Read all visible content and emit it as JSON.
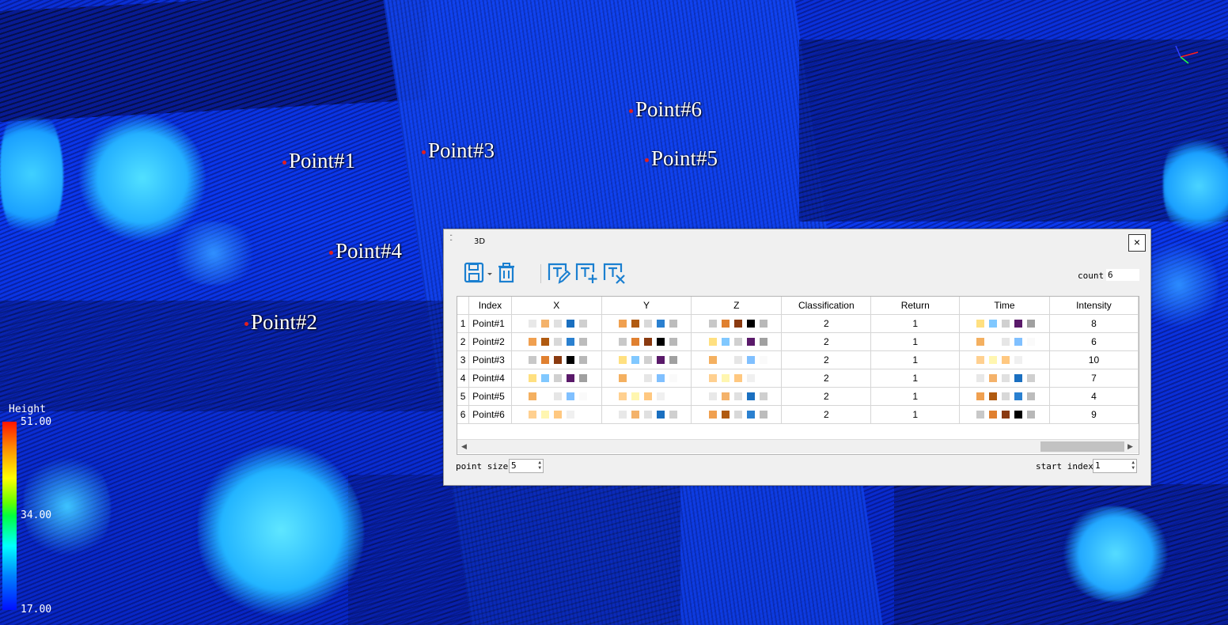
{
  "viewport": {
    "points": [
      {
        "label": "Point#1"
      },
      {
        "label": "Point#2"
      },
      {
        "label": "Point#3"
      },
      {
        "label": "Point#4"
      },
      {
        "label": "Point#5"
      },
      {
        "label": "Point#6"
      }
    ],
    "legend": {
      "title": "Height",
      "max": "51.00",
      "mid": "34.00",
      "min": "17.00"
    }
  },
  "dialog": {
    "title": "3D",
    "close_icon": "×",
    "toolbar": {
      "icons": [
        "save-icon",
        "dropdown-arrow-icon",
        "trash-icon",
        "edit-text-icon",
        "add-text-icon",
        "remove-text-icon"
      ]
    },
    "count_label": "count",
    "count_value": "6",
    "table": {
      "columns": [
        "Index",
        "X",
        "Y",
        "Z",
        "Classification",
        "Return",
        "Time",
        "Intensity"
      ],
      "rows": [
        {
          "num": "1",
          "index": "Point#1",
          "classification": "2",
          "return": "1",
          "intensity": "8"
        },
        {
          "num": "2",
          "index": "Point#2",
          "classification": "2",
          "return": "1",
          "intensity": "6"
        },
        {
          "num": "3",
          "index": "Point#3",
          "classification": "2",
          "return": "1",
          "intensity": "10"
        },
        {
          "num": "4",
          "index": "Point#4",
          "classification": "2",
          "return": "1",
          "intensity": "7"
        },
        {
          "num": "5",
          "index": "Point#5",
          "classification": "2",
          "return": "1",
          "intensity": "4"
        },
        {
          "num": "6",
          "index": "Point#6",
          "classification": "2",
          "return": "1",
          "intensity": "9"
        }
      ]
    },
    "point_size_label": "point size",
    "point_size_value": "5",
    "start_index_label": "start index",
    "start_index_value": "1"
  },
  "colors": {
    "accent_icon": "#1a7fd0",
    "background_cloud": "#0b39f0",
    "point_marker": "#e02020"
  }
}
